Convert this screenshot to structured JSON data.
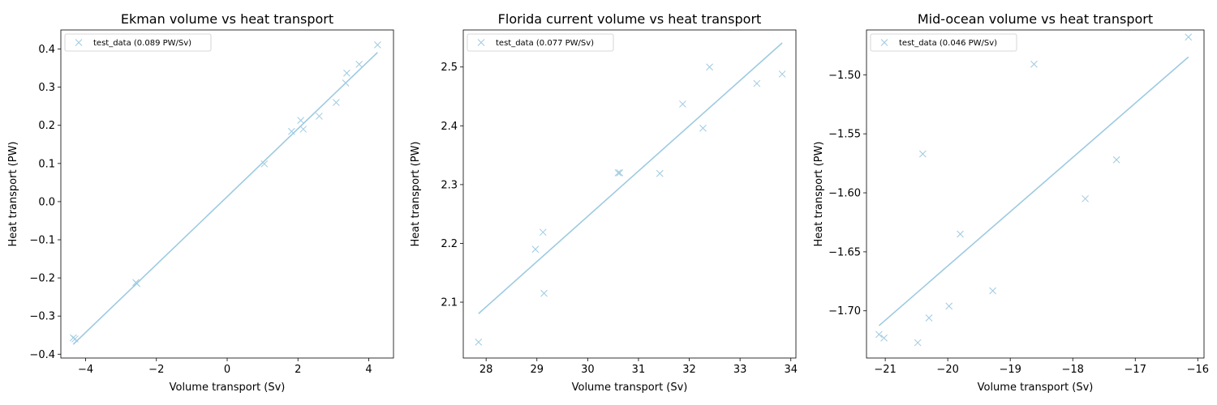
{
  "colors": {
    "series": "#9ecae1",
    "axis": "#000000",
    "legend_border": "#cccccc"
  },
  "chart_data": [
    {
      "type": "scatter",
      "title": "Ekman volume vs heat transport",
      "xlabel": "Volume transport (Sv)",
      "ylabel": "Heat transport (PW)",
      "xlim": [
        -4.7,
        4.7
      ],
      "ylim": [
        -0.41,
        0.45
      ],
      "xticks": [
        -4,
        -2,
        0,
        2,
        4
      ],
      "xtick_labels": [
        "−4",
        "−2",
        "0",
        "2",
        "4"
      ],
      "yticks": [
        -0.4,
        -0.3,
        -0.2,
        -0.1,
        0.0,
        0.1,
        0.2,
        0.3,
        0.4
      ],
      "ytick_labels": [
        "−0.4",
        "−0.3",
        "−0.2",
        "−0.1",
        "0.0",
        "0.1",
        "0.2",
        "0.3",
        "0.4"
      ],
      "grid": false,
      "legend_position": "top-left",
      "series": [
        {
          "name": "test_data (0.089 PW/Sv)",
          "marker": "x",
          "x": [
            -4.35,
            -4.3,
            -2.58,
            -2.55,
            1.05,
            1.82,
            2.08,
            2.15,
            2.6,
            3.08,
            3.35,
            3.38,
            3.73,
            4.25
          ],
          "y": [
            -0.357,
            -0.36,
            -0.212,
            -0.215,
            0.099,
            0.184,
            0.213,
            0.19,
            0.224,
            0.26,
            0.311,
            0.337,
            0.36,
            0.411
          ]
        }
      ],
      "fit_line": {
        "slope": 0.089,
        "intercept": 0.013
      }
    },
    {
      "type": "scatter",
      "title": "Florida current volume vs heat transport",
      "xlabel": "Volume transport (Sv)",
      "ylabel": "Heat transport (PW)",
      "xlim": [
        27.55,
        34.1
      ],
      "ylim": [
        2.005,
        2.563
      ],
      "xticks": [
        28,
        29,
        30,
        31,
        32,
        33,
        34
      ],
      "xtick_labels": [
        "28",
        "29",
        "30",
        "31",
        "32",
        "33",
        "34"
      ],
      "yticks": [
        2.1,
        2.2,
        2.3,
        2.4,
        2.5
      ],
      "ytick_labels": [
        "2.1",
        "2.2",
        "2.3",
        "2.4",
        "2.5"
      ],
      "grid": false,
      "legend_position": "top-left",
      "series": [
        {
          "name": "test_data (0.077 PW/Sv)",
          "marker": "x",
          "x": [
            27.85,
            28.97,
            29.12,
            29.14,
            30.6,
            30.63,
            31.42,
            31.87,
            32.27,
            32.4,
            33.33,
            33.83
          ],
          "y": [
            2.032,
            2.19,
            2.219,
            2.115,
            2.32,
            2.32,
            2.319,
            2.437,
            2.396,
            2.5,
            2.472,
            2.488
          ]
        }
      ],
      "fit_line": {
        "slope": 0.077,
        "intercept": -0.064
      }
    },
    {
      "type": "scatter",
      "title": "Mid-ocean volume vs heat transport",
      "xlabel": "Volume transport (Sv)",
      "ylabel": "Heat transport (PW)",
      "xlim": [
        -21.3,
        -15.9
      ],
      "ylim": [
        -1.74,
        -1.462
      ],
      "xticks": [
        -21,
        -20,
        -19,
        -18,
        -17,
        -16
      ],
      "xtick_labels": [
        "−21",
        "−20",
        "−19",
        "−18",
        "−17",
        "−16"
      ],
      "yticks": [
        -1.7,
        -1.65,
        -1.6,
        -1.55,
        -1.5
      ],
      "ytick_labels": [
        "−1.70",
        "−1.65",
        "−1.60",
        "−1.55",
        "−1.50"
      ],
      "grid": false,
      "legend_position": "top-left",
      "series": [
        {
          "name": "test_data (0.046 PW/Sv)",
          "marker": "x",
          "x": [
            -21.1,
            -21.02,
            -20.48,
            -20.4,
            -20.3,
            -19.98,
            -19.8,
            -19.28,
            -18.62,
            -17.8,
            -17.3,
            -16.15
          ],
          "y": [
            -1.72,
            -1.723,
            -1.727,
            -1.567,
            -1.706,
            -1.696,
            -1.635,
            -1.683,
            -1.491,
            -1.605,
            -1.572,
            -1.468
          ]
        }
      ],
      "fit_line": {
        "slope": 0.046,
        "intercept": -0.742
      }
    }
  ]
}
